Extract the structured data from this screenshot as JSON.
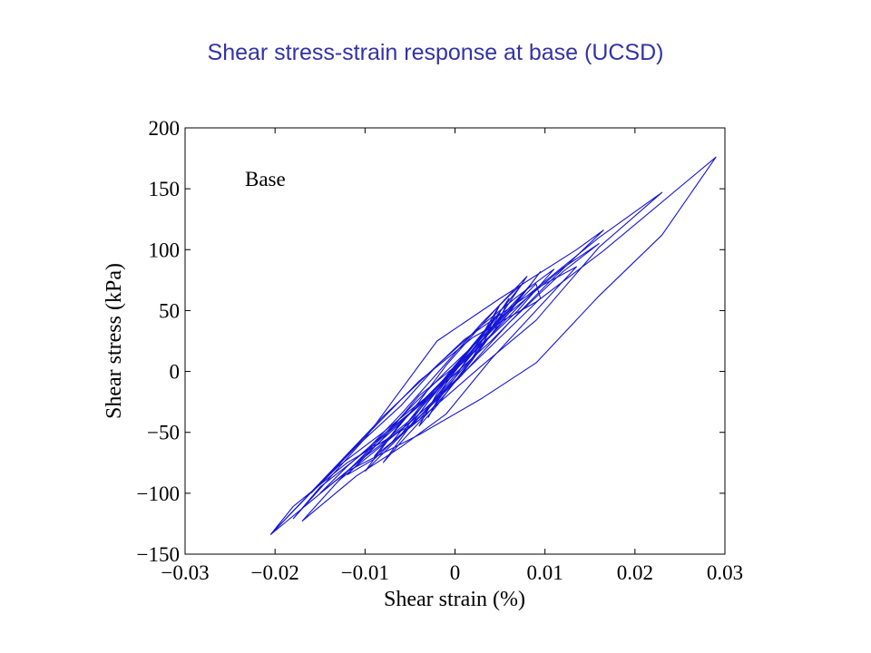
{
  "slide": {
    "title": "Shear stress-strain response at base (UCSD)"
  },
  "chart_data": {
    "type": "line",
    "xlabel": "Shear strain (%)",
    "ylabel": "Shear stress (kPa)",
    "xlim": [
      -0.03,
      0.03
    ],
    "ylim": [
      -150,
      200
    ],
    "xticks": [
      -0.03,
      -0.02,
      -0.01,
      0,
      0.01,
      0.02,
      0.03
    ],
    "xtick_labels": [
      "−0.03",
      "−0.02",
      "−0.01",
      "0",
      "0.01",
      "0.02",
      "0.03"
    ],
    "yticks": [
      -150,
      -100,
      -50,
      0,
      50,
      100,
      150,
      200
    ],
    "ytick_labels": [
      "−150",
      "−100",
      "−50",
      "0",
      "50",
      "100",
      "150",
      "200"
    ],
    "annotation": "Base",
    "grid": false,
    "color": "#1515d6",
    "series": [
      {
        "x": [
          -0.0205,
          -0.0115,
          -0.004,
          0.002,
          0.009,
          0.0165,
          0.029,
          0.023,
          0.016,
          0.009,
          0.003,
          -0.004,
          -0.012,
          -0.0205
        ],
        "y": [
          -134,
          -65,
          -8,
          28,
          57,
          99,
          176,
          112,
          62,
          7,
          -22,
          -52,
          -82,
          -134
        ]
      },
      {
        "x": [
          -0.0205,
          -0.008,
          0.001,
          0.008,
          0.016,
          0.023,
          0.016,
          0.009,
          0.003,
          -0.004,
          -0.012,
          -0.018,
          -0.0205
        ],
        "y": [
          -134,
          -37,
          26,
          62,
          110,
          147,
          102,
          42,
          5,
          -40,
          -75,
          -111,
          -134
        ]
      },
      {
        "x": [
          -0.018,
          -0.01,
          -0.002,
          0.005,
          0.0135,
          0.0165,
          0.01,
          0.004,
          -0.003,
          -0.009,
          -0.015,
          -0.018
        ],
        "y": [
          -121,
          -55,
          25,
          60,
          100,
          116,
          70,
          25,
          -22,
          -60,
          -95,
          -121
        ]
      },
      {
        "x": [
          -0.017,
          -0.012,
          -0.006,
          -0.001,
          0.004,
          0.009,
          0.0135,
          0.009,
          0.004,
          -0.001,
          -0.006,
          -0.011,
          -0.017
        ],
        "y": [
          -123,
          -82,
          -42,
          -5,
          30,
          68,
          86,
          50,
          10,
          -35,
          -62,
          -86,
          -123
        ]
      },
      {
        "x": [
          -0.013,
          -0.009,
          -0.005,
          -0.001,
          0.003,
          0.007,
          0.0095,
          0.006,
          0.002,
          -0.002,
          -0.006,
          -0.01,
          -0.013
        ],
        "y": [
          -90,
          -60,
          -30,
          0,
          28,
          58,
          82,
          48,
          12,
          -22,
          -48,
          -72,
          -90
        ]
      },
      {
        "x": [
          -0.01,
          -0.007,
          -0.004,
          -0.001,
          0.002,
          0.005,
          0.008,
          0.005,
          0.002,
          -0.001,
          -0.004,
          -0.007,
          -0.01
        ],
        "y": [
          -82,
          -52,
          -25,
          5,
          30,
          55,
          78,
          45,
          15,
          -12,
          -38,
          -60,
          -82
        ]
      },
      {
        "x": [
          -0.0095,
          -0.006,
          -0.003,
          0,
          0.003,
          0.006,
          0.0075,
          0.004,
          0.001,
          -0.002,
          -0.005,
          -0.008,
          -0.0095
        ],
        "y": [
          -62,
          -35,
          -10,
          15,
          40,
          62,
          72,
          40,
          12,
          -15,
          -40,
          -58,
          -62
        ]
      },
      {
        "x": [
          -0.008,
          -0.005,
          -0.002,
          0.001,
          0.004,
          0.006,
          0.0045,
          0.002,
          -0.001,
          -0.004,
          -0.006,
          -0.008
        ],
        "y": [
          -75,
          -45,
          -15,
          12,
          38,
          60,
          35,
          10,
          -18,
          -42,
          -58,
          -75
        ]
      },
      {
        "x": [
          -0.007,
          -0.004,
          -0.001,
          0.002,
          0.004,
          0.005,
          0.003,
          0,
          -0.003,
          -0.005,
          -0.007
        ],
        "y": [
          -58,
          -30,
          -5,
          22,
          40,
          55,
          30,
          2,
          -25,
          -45,
          -58
        ]
      },
      {
        "x": [
          -0.006,
          -0.003,
          0,
          0.003,
          0.005,
          0.003,
          0.001,
          -0.002,
          -0.004,
          -0.006
        ],
        "y": [
          -52,
          -22,
          5,
          30,
          48,
          22,
          0,
          -22,
          -40,
          -52
        ]
      },
      {
        "x": [
          -0.004,
          -0.002,
          0,
          0.002,
          0.004,
          0.002,
          0,
          -0.002,
          -0.004
        ],
        "y": [
          -45,
          -18,
          2,
          22,
          38,
          12,
          -8,
          -28,
          -45
        ]
      },
      {
        "x": [
          -0.003,
          -0.001,
          0.001,
          0.003,
          0.0045,
          0.002,
          0,
          -0.002,
          -0.003
        ],
        "y": [
          -38,
          -10,
          12,
          30,
          45,
          18,
          -5,
          -25,
          -38
        ]
      },
      {
        "x": [
          -0.016,
          -0.011,
          -0.006,
          -0.002,
          0.003,
          0.007,
          0.011,
          0.007,
          0.002,
          -0.003,
          -0.008,
          -0.013,
          -0.016
        ],
        "y": [
          -100,
          -62,
          -28,
          5,
          38,
          62,
          84,
          50,
          15,
          -20,
          -50,
          -78,
          -100
        ]
      },
      {
        "x": [
          -0.015,
          -0.012,
          -0.008,
          -0.004,
          0.0005,
          0.005,
          0.009,
          0.0095,
          0.005,
          0,
          -0.005,
          -0.01,
          -0.015
        ],
        "y": [
          -100,
          -78,
          -52,
          -28,
          5,
          42,
          72,
          60,
          28,
          -8,
          -42,
          -70,
          -100
        ]
      },
      {
        "x": [
          -0.009,
          -0.006,
          -0.002,
          0.002,
          0.006,
          0.0085,
          0.006,
          0.003,
          0,
          -0.003,
          -0.006,
          -0.009
        ],
        "y": [
          -70,
          -42,
          -12,
          18,
          50,
          72,
          52,
          28,
          0,
          -30,
          -52,
          -70
        ]
      },
      {
        "x": [
          -0.012,
          -0.008,
          -0.004,
          0.001,
          0.006,
          0.012,
          0.016,
          0.012,
          0.006,
          0.0005,
          -0.005,
          -0.009,
          -0.012
        ],
        "y": [
          -85,
          -55,
          -20,
          10,
          48,
          85,
          105,
          82,
          40,
          -5,
          -45,
          -72,
          -85
        ]
      }
    ]
  }
}
